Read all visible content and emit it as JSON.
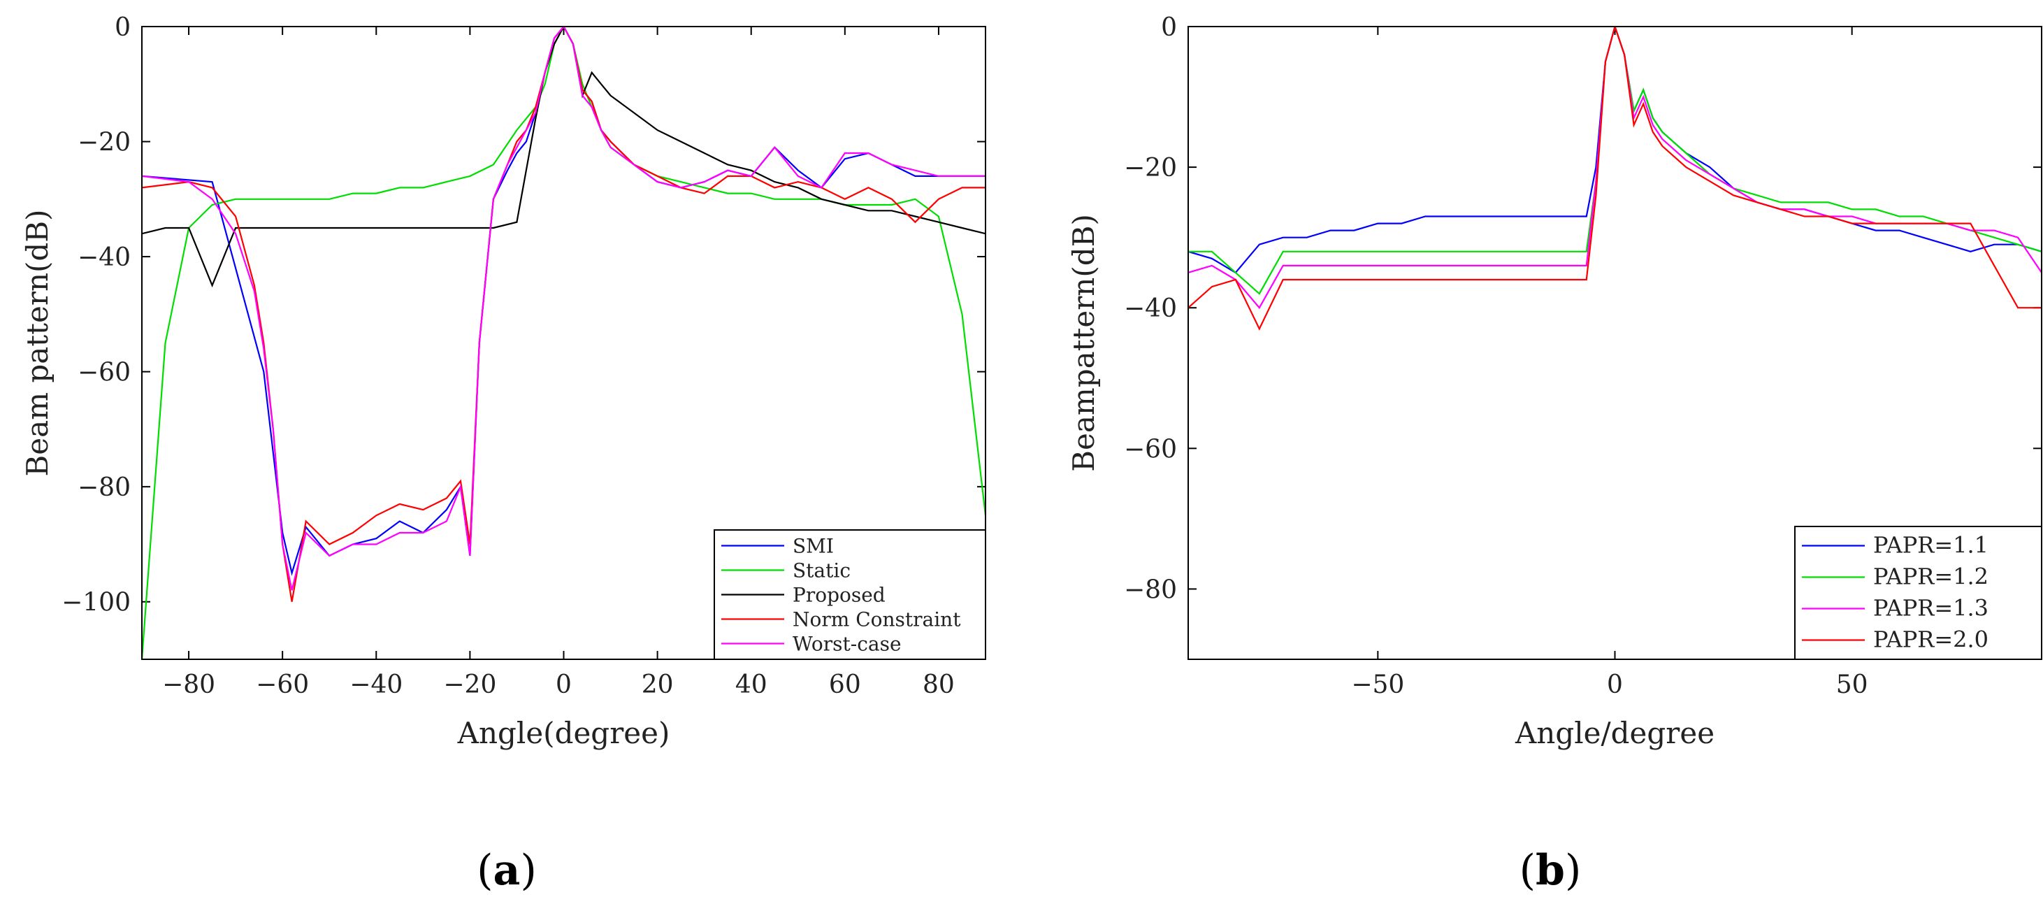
{
  "chart_data": [
    {
      "id": "a",
      "type": "line",
      "panel_label": "a",
      "xlabel": "Angle(degree)",
      "ylabel": "Beam pattern(dB)",
      "xlim": [
        -90,
        90
      ],
      "ylim": [
        -110,
        0
      ],
      "xticks": [
        -80,
        -60,
        -40,
        -20,
        0,
        20,
        40,
        60,
        80
      ],
      "yticks": [
        0,
        -20,
        -40,
        -60,
        -80,
        -100
      ],
      "xtick_labels": [
        "−80",
        "−60",
        "−40",
        "−20",
        "0",
        "20",
        "40",
        "60",
        "80"
      ],
      "ytick_labels": [
        "0",
        "−20",
        "−40",
        "−60",
        "−80",
        "−100"
      ],
      "legend_position": "bottom-right",
      "series": [
        {
          "name": "SMI",
          "color": "#0000ff",
          "x": [
            -90,
            -75,
            -64,
            -60,
            -58,
            -55,
            -50,
            -45,
            -40,
            -35,
            -30,
            -25,
            -22,
            -20,
            -18,
            -15,
            -12,
            -10,
            -8,
            -6,
            -4,
            -2,
            0,
            2,
            4,
            6,
            8,
            10,
            15,
            20,
            25,
            30,
            35,
            40,
            45,
            50,
            55,
            60,
            65,
            70,
            75,
            80,
            85,
            90
          ],
          "values": [
            -26,
            -27,
            -60,
            -88,
            -95,
            -87,
            -92,
            -90,
            -89,
            -86,
            -88,
            -84,
            -80,
            -92,
            -55,
            -30,
            -25,
            -22,
            -20,
            -15,
            -8,
            -2,
            0,
            -3,
            -11,
            -13,
            -18,
            -20,
            -24,
            -27,
            -28,
            -27,
            -25,
            -26,
            -21,
            -25,
            -28,
            -23,
            -22,
            -24,
            -26,
            -26,
            -26,
            -26
          ]
        },
        {
          "name": "Static",
          "color": "#00dd00",
          "x": [
            -90,
            -85,
            -80,
            -75,
            -70,
            -65,
            -60,
            -55,
            -50,
            -45,
            -40,
            -35,
            -30,
            -25,
            -20,
            -15,
            -10,
            -6,
            -4,
            -2,
            0,
            2,
            4,
            6,
            8,
            10,
            15,
            20,
            25,
            30,
            35,
            40,
            45,
            50,
            55,
            60,
            65,
            70,
            75,
            80,
            85,
            90
          ],
          "values": [
            -110,
            -55,
            -35,
            -31,
            -30,
            -30,
            -30,
            -30,
            -30,
            -29,
            -29,
            -28,
            -28,
            -27,
            -26,
            -24,
            -18,
            -14,
            -10,
            -3,
            0,
            -3,
            -10,
            -14,
            -18,
            -21,
            -24,
            -26,
            -27,
            -28,
            -29,
            -29,
            -30,
            -30,
            -30,
            -31,
            -31,
            -31,
            -30,
            -33,
            -50,
            -85
          ]
        },
        {
          "name": "Proposed",
          "color": "#000000",
          "x": [
            -90,
            -85,
            -80,
            -75,
            -70,
            -65,
            -60,
            -55,
            -50,
            -45,
            -40,
            -35,
            -30,
            -25,
            -20,
            -15,
            -10,
            -6,
            -4,
            -2,
            0,
            2,
            4,
            6,
            8,
            10,
            15,
            20,
            25,
            30,
            35,
            40,
            45,
            50,
            55,
            60,
            65,
            70,
            75,
            80,
            85,
            90
          ],
          "values": [
            -36,
            -35,
            -35,
            -45,
            -35,
            -35,
            -35,
            -35,
            -35,
            -35,
            -35,
            -35,
            -35,
            -35,
            -35,
            -35,
            -34,
            -16,
            -8,
            -3,
            0,
            -3,
            -12,
            -8,
            -10,
            -12,
            -15,
            -18,
            -20,
            -22,
            -24,
            -25,
            -27,
            -28,
            -30,
            -31,
            -32,
            -32,
            -33,
            -34,
            -35,
            -36
          ]
        },
        {
          "name": "Norm Constraint",
          "color": "#ff0000",
          "x": [
            -90,
            -80,
            -75,
            -70,
            -66,
            -64,
            -62,
            -60,
            -58,
            -55,
            -50,
            -45,
            -40,
            -35,
            -30,
            -25,
            -22,
            -20,
            -18,
            -15,
            -12,
            -10,
            -8,
            -6,
            -4,
            -2,
            0,
            2,
            4,
            6,
            8,
            10,
            15,
            20,
            25,
            30,
            35,
            40,
            45,
            50,
            55,
            60,
            65,
            70,
            75,
            80,
            85,
            90
          ],
          "values": [
            -28,
            -27,
            -28,
            -33,
            -45,
            -55,
            -70,
            -90,
            -100,
            -86,
            -90,
            -88,
            -85,
            -83,
            -84,
            -82,
            -79,
            -90,
            -55,
            -30,
            -24,
            -20,
            -18,
            -14,
            -8,
            -2,
            0,
            -3,
            -11,
            -13,
            -18,
            -20,
            -24,
            -26,
            -28,
            -29,
            -26,
            -26,
            -28,
            -27,
            -28,
            -30,
            -28,
            -30,
            -34,
            -30,
            -28,
            -28
          ]
        },
        {
          "name": "Worst-case",
          "color": "#ff00ff",
          "x": [
            -90,
            -80,
            -75,
            -70,
            -66,
            -64,
            -62,
            -60,
            -58,
            -55,
            -50,
            -45,
            -40,
            -35,
            -30,
            -25,
            -22,
            -20,
            -18,
            -15,
            -12,
            -10,
            -8,
            -6,
            -4,
            -2,
            0,
            2,
            4,
            6,
            8,
            10,
            15,
            20,
            25,
            30,
            35,
            40,
            45,
            50,
            55,
            60,
            65,
            70,
            75,
            80,
            85,
            90
          ],
          "values": [
            -26,
            -27,
            -30,
            -36,
            -46,
            -56,
            -70,
            -90,
            -98,
            -88,
            -92,
            -90,
            -90,
            -88,
            -88,
            -86,
            -80,
            -92,
            -55,
            -30,
            -24,
            -21,
            -18,
            -15,
            -8,
            -2,
            0,
            -3,
            -12,
            -14,
            -18,
            -21,
            -24,
            -27,
            -28,
            -27,
            -25,
            -26,
            -21,
            -26,
            -28,
            -22,
            -22,
            -24,
            -25,
            -26,
            -26,
            -26
          ]
        }
      ]
    },
    {
      "id": "b",
      "type": "line",
      "panel_label": "b",
      "xlabel": "Angle/degree",
      "ylabel": "Beampattern(dB)",
      "xlim": [
        -90,
        90
      ],
      "ylim": [
        -90,
        0
      ],
      "xticks": [
        -50,
        0,
        50
      ],
      "yticks": [
        0,
        -20,
        -40,
        -60,
        -80
      ],
      "xtick_labels": [
        "−50",
        "0",
        "50"
      ],
      "ytick_labels": [
        "0",
        "−20",
        "−40",
        "−60",
        "−80"
      ],
      "legend_position": "bottom-right",
      "series": [
        {
          "name": "PAPR=1.1",
          "color": "#0000ff",
          "x": [
            -90,
            -85,
            -80,
            -75,
            -70,
            -65,
            -60,
            -55,
            -50,
            -45,
            -40,
            -35,
            -30,
            -25,
            -20,
            -15,
            -10,
            -6,
            -4,
            -2,
            0,
            2,
            4,
            6,
            8,
            10,
            15,
            20,
            25,
            30,
            35,
            40,
            45,
            50,
            55,
            60,
            65,
            70,
            75,
            80,
            85,
            90
          ],
          "values": [
            -32,
            -33,
            -35,
            -31,
            -30,
            -30,
            -29,
            -29,
            -28,
            -28,
            -27,
            -27,
            -27,
            -27,
            -27,
            -27,
            -27,
            -27,
            -20,
            -5,
            0,
            -4,
            -12,
            -9,
            -13,
            -15,
            -18,
            -20,
            -23,
            -25,
            -26,
            -26,
            -27,
            -28,
            -29,
            -29,
            -30,
            -31,
            -32,
            -31,
            -31,
            -32
          ]
        },
        {
          "name": "PAPR=1.2",
          "color": "#00dd00",
          "x": [
            -90,
            -85,
            -80,
            -75,
            -70,
            -65,
            -60,
            -55,
            -50,
            -45,
            -40,
            -35,
            -30,
            -25,
            -20,
            -15,
            -10,
            -6,
            -4,
            -2,
            0,
            2,
            4,
            6,
            8,
            10,
            15,
            20,
            25,
            30,
            35,
            40,
            45,
            50,
            55,
            60,
            65,
            70,
            75,
            80,
            85,
            90
          ],
          "values": [
            -32,
            -32,
            -35,
            -38,
            -32,
            -32,
            -32,
            -32,
            -32,
            -32,
            -32,
            -32,
            -32,
            -32,
            -32,
            -32,
            -32,
            -32,
            -22,
            -5,
            0,
            -4,
            -12,
            -9,
            -13,
            -15,
            -18,
            -21,
            -23,
            -24,
            -25,
            -25,
            -25,
            -26,
            -26,
            -27,
            -27,
            -28,
            -29,
            -30,
            -31,
            -32
          ]
        },
        {
          "name": "PAPR=1.3",
          "color": "#ff00ff",
          "x": [
            -90,
            -85,
            -80,
            -75,
            -70,
            -65,
            -60,
            -55,
            -50,
            -45,
            -40,
            -35,
            -30,
            -25,
            -20,
            -15,
            -10,
            -6,
            -4,
            -2,
            0,
            2,
            4,
            6,
            8,
            10,
            15,
            20,
            25,
            30,
            35,
            40,
            45,
            50,
            55,
            60,
            65,
            70,
            75,
            80,
            85,
            90
          ],
          "values": [
            -35,
            -34,
            -36,
            -40,
            -34,
            -34,
            -34,
            -34,
            -34,
            -34,
            -34,
            -34,
            -34,
            -34,
            -34,
            -34,
            -34,
            -34,
            -22,
            -5,
            0,
            -4,
            -13,
            -10,
            -14,
            -16,
            -19,
            -21,
            -23,
            -25,
            -26,
            -26,
            -27,
            -27,
            -28,
            -28,
            -28,
            -28,
            -29,
            -29,
            -30,
            -35
          ]
        },
        {
          "name": "PAPR=2.0",
          "color": "#ff0000",
          "x": [
            -90,
            -85,
            -80,
            -75,
            -70,
            -65,
            -60,
            -55,
            -50,
            -45,
            -40,
            -35,
            -30,
            -25,
            -20,
            -15,
            -10,
            -6,
            -4,
            -2,
            0,
            2,
            4,
            6,
            8,
            10,
            15,
            20,
            25,
            30,
            35,
            40,
            45,
            50,
            55,
            60,
            65,
            70,
            75,
            80,
            85,
            90
          ],
          "values": [
            -40,
            -37,
            -36,
            -43,
            -36,
            -36,
            -36,
            -36,
            -36,
            -36,
            -36,
            -36,
            -36,
            -36,
            -36,
            -36,
            -36,
            -36,
            -24,
            -5,
            0,
            -4,
            -14,
            -11,
            -15,
            -17,
            -20,
            -22,
            -24,
            -25,
            -26,
            -27,
            -27,
            -28,
            -28,
            -28,
            -28,
            -28,
            -28,
            -34,
            -40,
            -40
          ]
        }
      ]
    }
  ]
}
